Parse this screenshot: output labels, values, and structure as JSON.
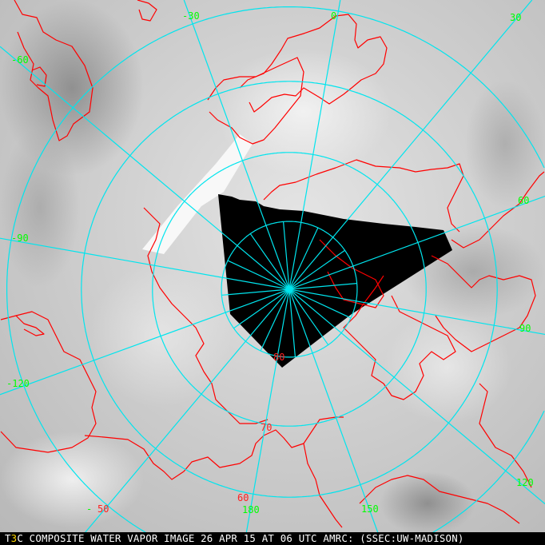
{
  "image": {
    "type": "polar stereographic composite water vapor satellite image",
    "caption_prefix": "T",
    "caption_marker": "3",
    "caption_rest": "C COMPOSITE WATER VAPOR IMAGE 26 APR 15 AT 06 UTC AMRC: (SSEC:UW-MADISON)"
  },
  "grid": {
    "latitudes": [
      80,
      70,
      60,
      50
    ],
    "meridian_step_deg": 30,
    "inner_meridian_step_deg": 15,
    "color": "#00e5ee"
  },
  "labels": {
    "longitude": {
      "m30": "-30",
      "zero": "0",
      "p30": "30",
      "m60": "-60",
      "p60": "60",
      "m90": "-90",
      "p90": "90",
      "m120": "-120",
      "p120": "120",
      "p150": "150",
      "p180": "180",
      "dash": "-"
    },
    "latitude": {
      "l80": "80",
      "l70": "70",
      "l60": "60",
      "l50": "50"
    }
  },
  "colors": {
    "coastline": "#ff0000",
    "longitude_label": "#00ff00",
    "latitude_label": "#ff2020",
    "no_data": "#000000",
    "caption_marker": "#ffd800"
  }
}
